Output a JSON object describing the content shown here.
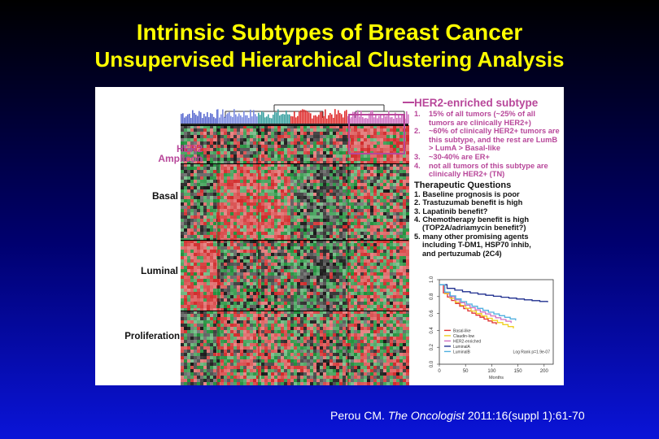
{
  "slide": {
    "title": "Intrinsic Subtypes of Breast Cancer",
    "subtitle": "Unsupervised Hierarchical Clustering Analysis"
  },
  "heatmap": {
    "row_labels": {
      "her2_line1": "HER2",
      "her2_line2": "Amplicon",
      "basal": "Basal",
      "luminal": "Luminal",
      "proliferation": "Proliferation"
    },
    "colors": {
      "red": "#d12a2a",
      "green": "#1f8f3a",
      "dark": "#1a1a1a",
      "her2_highlight": "#b8479a"
    }
  },
  "notes": {
    "title": "HER2-enriched subtype",
    "items": [
      {
        "num": "1.",
        "text": "15% of all tumors (~25% of all tumors are clinically HER2+)"
      },
      {
        "num": "2.",
        "text": "~60% of clinically HER2+ tumors are this subtype, and the rest are LumB > LumA > Basal-like"
      },
      {
        "num": "3.",
        "text": "~30-40% are ER+"
      },
      {
        "num": "4.",
        "text": "not all tumors of this subtype are clinically HER2+ (TN)"
      }
    ]
  },
  "therapeutic": {
    "title": "Therapeutic Questions",
    "items": [
      "1. Baseline prognosis is poor",
      "2. Trastuzumab benefit is high",
      "3. Lapatinib benefit?",
      "4. Chemotherapy benefit is high",
      "(TOP2A/adriamycin benefit?)",
      "5. many other promising agents",
      "including T-DM1, HSP70 inhib,",
      "and pertuzumab (2C4)"
    ]
  },
  "km_plot": {
    "y_ticks": [
      "0.0",
      "0.2",
      "0.4",
      "0.6",
      "0.8",
      "1.0"
    ],
    "x_ticks": [
      "0",
      "50",
      "100",
      "150",
      "200"
    ],
    "xlabel": "Months",
    "legend": [
      "Basal-like",
      "Claudin-low",
      "HER2-enriched",
      "LuminalA",
      "LuminalB"
    ],
    "logrank": "Log Rank p=1.9e-07",
    "series_colors": [
      "#e03030",
      "#f0d020",
      "#d070c0",
      "#1f2f8f",
      "#50b0e0"
    ]
  },
  "citation": {
    "author": "Perou CM.",
    "journal": "The Oncologist",
    "ref": "2011:16(suppl 1):61-70"
  }
}
